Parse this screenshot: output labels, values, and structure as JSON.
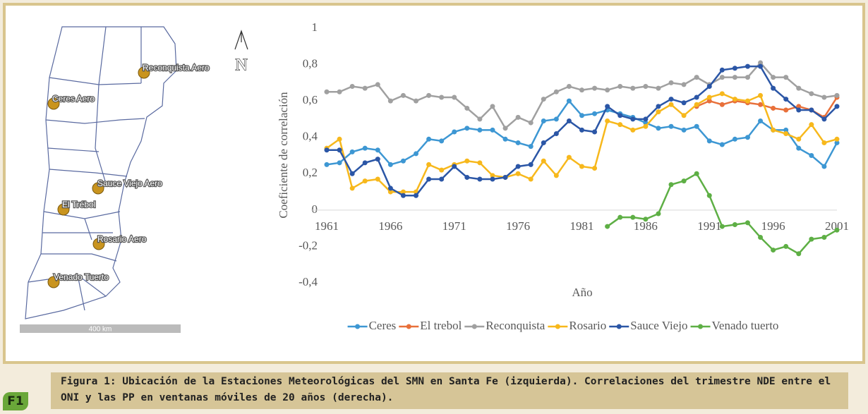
{
  "map": {
    "stations": [
      "Reconquista Aero",
      "Ceres Aero",
      "Sauce Viejo Aero",
      "El Trébol",
      "Rosario Aero",
      "Venado Tuerto"
    ],
    "north": "N",
    "scale": "400 km"
  },
  "chart_data": {
    "type": "line",
    "x_label": "Año",
    "y_label": "Coeficiente  de correlación",
    "x": [
      1961,
      1962,
      1963,
      1964,
      1965,
      1966,
      1967,
      1968,
      1969,
      1970,
      1971,
      1972,
      1973,
      1974,
      1975,
      1976,
      1977,
      1978,
      1979,
      1980,
      1981,
      1982,
      1983,
      1984,
      1985,
      1986,
      1987,
      1988,
      1989,
      1990,
      1991,
      1992,
      1993,
      1994,
      1995,
      1996,
      1997,
      1998,
      1999,
      2000,
      2001
    ],
    "xlim": [
      1961,
      2001
    ],
    "xticks": [
      1961,
      1966,
      1971,
      1976,
      1981,
      1986,
      1991,
      1996,
      2001
    ],
    "ylim": [
      -0.4,
      1
    ],
    "yticks": [
      {
        "value": -0.4,
        "label": "-0,4"
      },
      {
        "value": -0.2,
        "label": "-0,2"
      },
      0,
      {
        "value": 0.2,
        "label": "0,2"
      },
      {
        "value": 0.4,
        "label": "0,4"
      },
      {
        "value": 0.6,
        "label": "0,6"
      },
      {
        "value": 0.8,
        "label": "0,8"
      },
      1
    ],
    "series": [
      {
        "name": "Ceres",
        "color": "#3d97d3",
        "values": [
          0.25,
          0.26,
          0.32,
          0.34,
          0.33,
          0.25,
          0.27,
          0.31,
          0.39,
          0.38,
          0.43,
          0.45,
          0.44,
          0.44,
          0.39,
          0.37,
          0.35,
          0.49,
          0.5,
          0.6,
          0.52,
          0.53,
          0.55,
          0.53,
          0.51,
          0.48,
          0.45,
          0.46,
          0.44,
          0.46,
          0.38,
          0.36,
          0.39,
          0.4,
          0.49,
          0.44,
          0.44,
          0.34,
          0.3,
          0.24,
          0.37
        ]
      },
      {
        "name": "El trebol",
        "color": "#e8703a",
        "values": [
          null,
          null,
          null,
          null,
          null,
          null,
          null,
          null,
          null,
          null,
          null,
          null,
          null,
          null,
          null,
          null,
          null,
          null,
          null,
          null,
          null,
          null,
          null,
          null,
          null,
          null,
          null,
          null,
          null,
          0.57,
          0.6,
          0.58,
          0.6,
          0.59,
          0.58,
          0.56,
          0.55,
          0.57,
          0.55,
          0.51,
          0.62
        ]
      },
      {
        "name": "Reconquista",
        "color": "#a0a0a0",
        "values": [
          0.65,
          0.65,
          0.68,
          0.67,
          0.69,
          0.6,
          0.63,
          0.6,
          0.63,
          0.62,
          0.62,
          0.56,
          0.5,
          0.57,
          0.45,
          0.51,
          0.48,
          0.61,
          0.65,
          0.68,
          0.66,
          0.67,
          0.66,
          0.68,
          0.67,
          0.68,
          0.67,
          0.7,
          0.69,
          0.73,
          0.69,
          0.73,
          0.73,
          0.73,
          0.81,
          0.73,
          0.73,
          0.67,
          0.64,
          0.62,
          0.63
        ]
      },
      {
        "name": "Rosario",
        "color": "#f7b81c",
        "values": [
          0.34,
          0.39,
          0.12,
          0.16,
          0.17,
          0.1,
          0.1,
          0.1,
          0.25,
          0.22,
          0.25,
          0.27,
          0.26,
          0.19,
          0.18,
          0.2,
          0.17,
          0.27,
          0.19,
          0.29,
          0.24,
          0.23,
          0.49,
          0.47,
          0.44,
          0.46,
          0.54,
          0.58,
          0.52,
          0.58,
          0.62,
          0.64,
          0.61,
          0.6,
          0.63,
          0.44,
          0.42,
          0.39,
          0.47,
          0.37,
          0.39
        ]
      },
      {
        "name": "Sauce Viejo",
        "color": "#2b56a6",
        "values": [
          0.33,
          0.33,
          0.2,
          0.26,
          0.28,
          0.12,
          0.08,
          0.08,
          0.17,
          0.17,
          0.24,
          0.18,
          0.17,
          0.17,
          0.18,
          0.24,
          0.25,
          0.37,
          0.42,
          0.49,
          0.44,
          0.43,
          0.57,
          0.52,
          0.5,
          0.5,
          0.57,
          0.61,
          0.59,
          0.62,
          0.68,
          0.77,
          0.78,
          0.79,
          0.79,
          0.67,
          0.61,
          0.55,
          0.55,
          0.5,
          0.57
        ]
      },
      {
        "name": "Venado tuerto",
        "color": "#5eaf45",
        "values": [
          null,
          null,
          null,
          null,
          null,
          null,
          null,
          null,
          null,
          null,
          null,
          null,
          null,
          null,
          null,
          null,
          null,
          null,
          null,
          null,
          null,
          null,
          -0.09,
          -0.04,
          -0.04,
          -0.05,
          -0.02,
          0.14,
          0.16,
          0.2,
          0.08,
          -0.09,
          -0.08,
          -0.07,
          -0.15,
          -0.22,
          -0.2,
          -0.24,
          -0.16,
          -0.15,
          -0.11
        ]
      }
    ]
  },
  "caption": {
    "tag": "F1",
    "text": "Figura 1: Ubicación de la Estaciones Meteorológicas del SMN en Santa Fe (izquierda). Correlaciones del trimestre NDE entre el ONI y las PP en ventanas móviles de 20 años (derecha)."
  }
}
